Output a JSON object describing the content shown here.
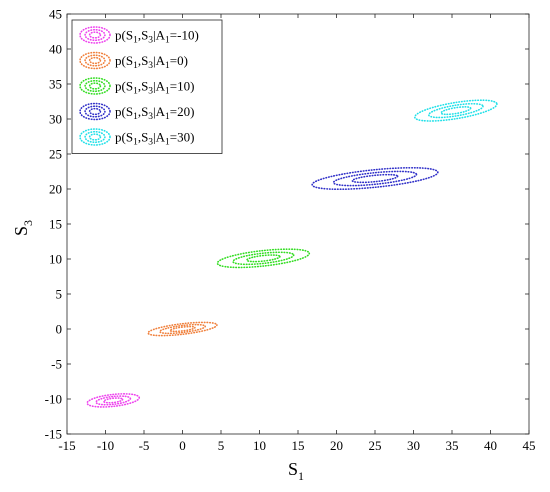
{
  "chart_data": {
    "type": "scatter",
    "title": "",
    "xlabel": "S",
    "xlabel_sub": "1",
    "ylabel": "S",
    "ylabel_sub": "3",
    "xlim": [
      -15,
      45
    ],
    "ylim": [
      -15,
      45
    ],
    "xticks": [
      -15,
      -10,
      -5,
      0,
      5,
      10,
      15,
      20,
      25,
      30,
      35,
      40,
      45
    ],
    "yticks": [
      -15,
      -10,
      -5,
      0,
      5,
      10,
      15,
      20,
      25,
      30,
      35,
      40,
      45
    ],
    "grid": false,
    "legend_position": "top-left",
    "series": [
      {
        "name": "p(S1,S3|A1=-10)",
        "legend": {
          "pre": "p(S",
          "s1": "1",
          "mid": ",S",
          "s3": "3",
          "bar": "|A",
          "sa": "1",
          "post": "=-10)"
        },
        "color": "#ee42ee",
        "center": [
          -9,
          -10.2
        ],
        "rx": 3.4,
        "ry": 0.85,
        "tilt": 0.12
      },
      {
        "name": "p(S1,S3|A1=0)",
        "legend": {
          "pre": "p(S",
          "s1": "1",
          "mid": ",S",
          "s3": "3",
          "bar": "|A",
          "sa": "1",
          "post": "=0)"
        },
        "color": "#f0803c",
        "center": [
          0,
          0
        ],
        "rx": 4.5,
        "ry": 0.75,
        "tilt": 0.13
      },
      {
        "name": "p(S1,S3|A1=10)",
        "legend": {
          "pre": "p(S",
          "s1": "1",
          "mid": ",S",
          "s3": "3",
          "bar": "|A",
          "sa": "1",
          "post": "=10)"
        },
        "color": "#33dd22",
        "center": [
          10.5,
          10.1
        ],
        "rx": 6.0,
        "ry": 1.1,
        "tilt": 0.12
      },
      {
        "name": "p(S1,S3|A1=20)",
        "legend": {
          "pre": "p(S",
          "s1": "1",
          "mid": ",S",
          "s3": "3",
          "bar": "|A",
          "sa": "1",
          "post": "=20)"
        },
        "color": "#3030c8",
        "center": [
          25,
          21.5
        ],
        "rx": 8.2,
        "ry": 1.25,
        "tilt": 0.11
      },
      {
        "name": "p(S1,S3|A1=30)",
        "legend": {
          "pre": "p(S",
          "s1": "1",
          "mid": ",S",
          "s3": "3",
          "bar": "|A",
          "sa": "1",
          "post": "=30)"
        },
        "color": "#22e0e8",
        "center": [
          35.5,
          31.2
        ],
        "rx": 5.4,
        "ry": 1.15,
        "tilt": 0.18
      }
    ]
  }
}
